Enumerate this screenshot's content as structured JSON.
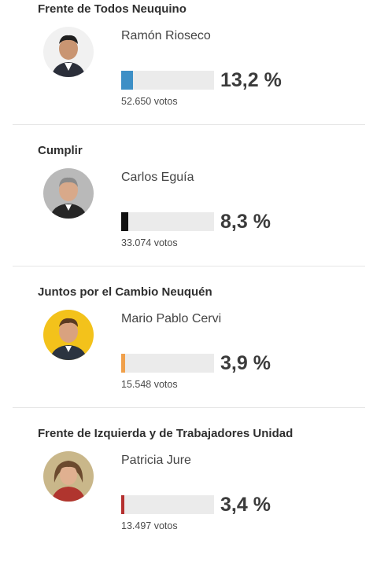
{
  "results": [
    {
      "party": "Frente de Todos Neuquino",
      "candidate": "Ramón Rioseco",
      "percent_label": "13,2 %",
      "percent": 13.2,
      "bar_fill_fraction": 0.13,
      "votes": "52.650 votos",
      "color": "#3d8fc6",
      "avatar_bg": "#f1f1f1",
      "avatar_icon": "candidate-photo-icon"
    },
    {
      "party": "Cumplir",
      "candidate": "Carlos Eguía",
      "percent_label": "8,3 %",
      "percent": 8.3,
      "bar_fill_fraction": 0.08,
      "votes": "33.074 votos",
      "color": "#111111",
      "avatar_bg": "#b9b9b9",
      "avatar_icon": "candidate-photo-icon"
    },
    {
      "party": "Juntos por el Cambio Neuquén",
      "candidate": "Mario Pablo Cervi",
      "percent_label": "3,9 %",
      "percent": 3.9,
      "bar_fill_fraction": 0.04,
      "votes": "15.548 votos",
      "color": "#f0a04b",
      "avatar_bg": "#f3c21b",
      "avatar_icon": "candidate-photo-icon"
    },
    {
      "party": "Frente de Izquierda y de Trabajadores Unidad",
      "candidate": "Patricia Jure",
      "percent_label": "3,4 %",
      "percent": 3.4,
      "bar_fill_fraction": 0.035,
      "votes": "13.497 votos",
      "color": "#b5302f",
      "avatar_bg": "#c9b78a",
      "avatar_icon": "candidate-photo-icon"
    }
  ]
}
